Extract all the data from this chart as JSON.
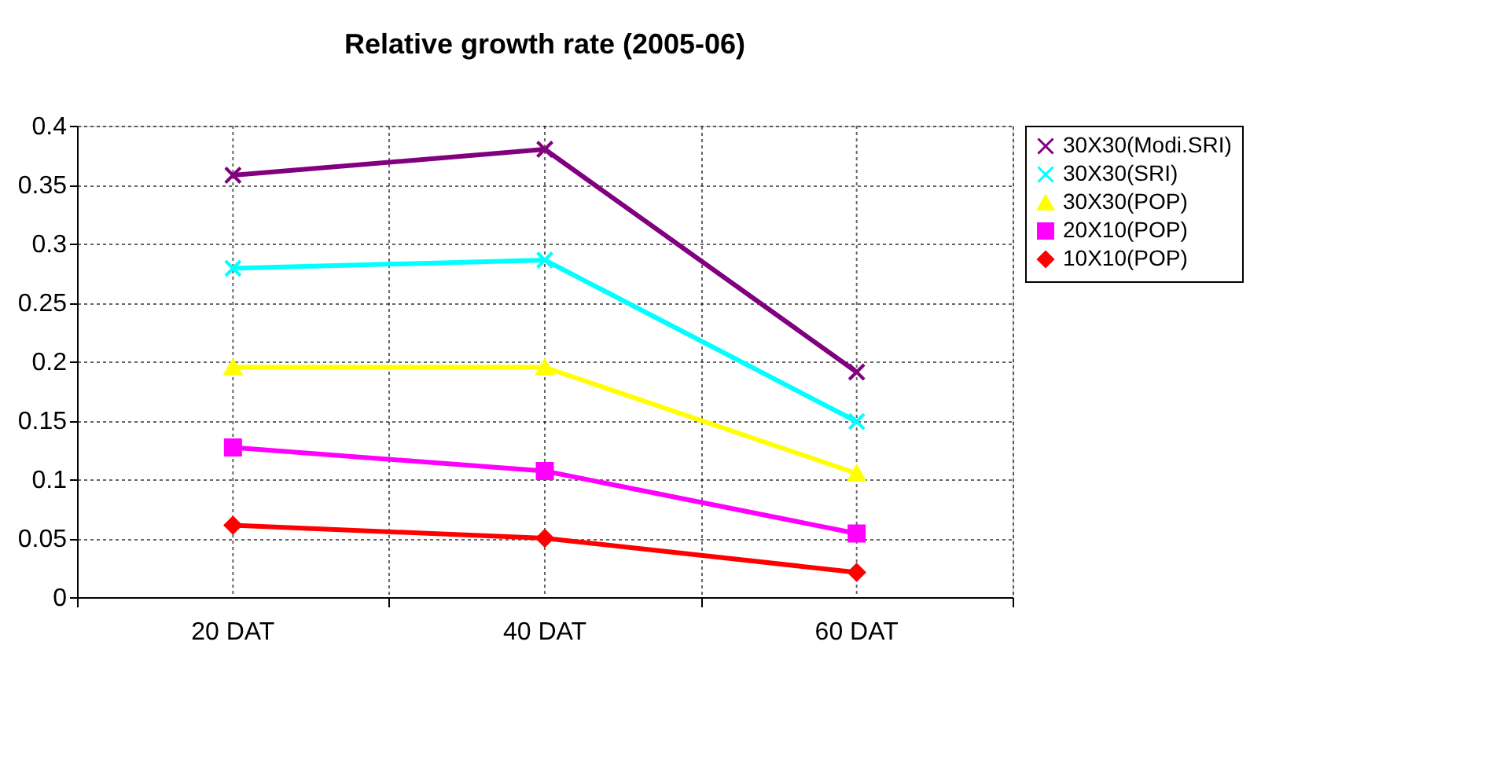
{
  "chart_data": {
    "type": "line",
    "title": "Relative growth rate (2005-06)",
    "categories": [
      "20 DAT",
      "40 DAT",
      "60 DAT"
    ],
    "series": [
      {
        "name": "30X30(Modi.SRI)",
        "color": "#800080",
        "marker": "cross",
        "values": [
          0.358,
          0.38,
          0.191
        ]
      },
      {
        "name": "30X30(SRI)",
        "color": "#00ffff",
        "marker": "cross",
        "values": [
          0.279,
          0.286,
          0.149
        ]
      },
      {
        "name": "30X30(POP)",
        "color": "#ffff00",
        "marker": "triangle",
        "values": [
          0.195,
          0.195,
          0.105
        ]
      },
      {
        "name": "20X10(POP)",
        "color": "#ff00ff",
        "marker": "square",
        "values": [
          0.127,
          0.107,
          0.054
        ]
      },
      {
        "name": "10X10(POP)",
        "color": "#ff0000",
        "marker": "diamond",
        "values": [
          0.061,
          0.05,
          0.021
        ]
      }
    ],
    "ylim": [
      0,
      0.4
    ],
    "yticks": [
      0,
      0.05,
      0.1,
      0.15,
      0.2,
      0.25,
      0.3,
      0.35,
      0.4
    ],
    "grid": true,
    "legend": "right",
    "line_style": "solid"
  }
}
